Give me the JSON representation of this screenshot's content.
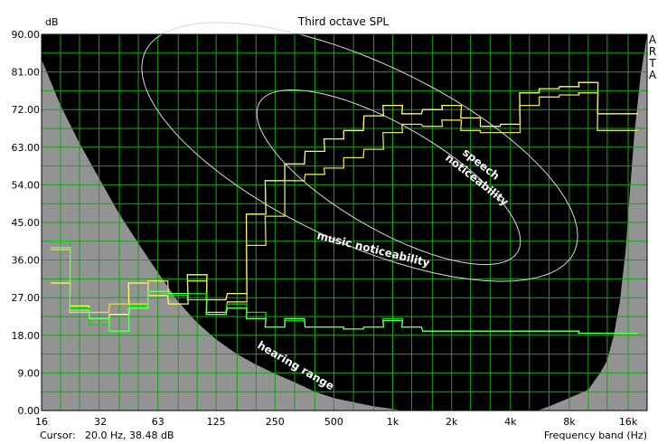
{
  "chart_data": {
    "type": "line",
    "title": "Third octave SPL",
    "ylabel": "dB",
    "xlabel": "Frequency band (Hz)",
    "brand": "ARTA",
    "cursor_label": "Cursor:",
    "cursor_value": "20.0 Hz, 38.48 dB",
    "x_scale": "log",
    "xlim": [
      16,
      20000
    ],
    "ylim": [
      0,
      90
    ],
    "grid": true,
    "y_ticks": [
      "0.00",
      "9.00",
      "18.00",
      "27.00",
      "36.00",
      "45.00",
      "54.00",
      "63.00",
      "72.00",
      "81.00",
      "90.00"
    ],
    "x_ticks": [
      {
        "label": "16",
        "value": 16
      },
      {
        "label": "32",
        "value": 32
      },
      {
        "label": "63",
        "value": 63
      },
      {
        "label": "125",
        "value": 125
      },
      {
        "label": "250",
        "value": 250
      },
      {
        "label": "500",
        "value": 500
      },
      {
        "label": "1k",
        "value": 1000
      },
      {
        "label": "2k",
        "value": 2000
      },
      {
        "label": "4k",
        "value": 4000
      },
      {
        "label": "8k",
        "value": 8000
      },
      {
        "label": "16k",
        "value": 16000
      }
    ],
    "bands": [
      20,
      25,
      31.5,
      40,
      50,
      63,
      80,
      100,
      125,
      160,
      200,
      250,
      315,
      400,
      500,
      630,
      800,
      1000,
      1250,
      1600,
      2000,
      2500,
      3150,
      4000,
      5000,
      6300,
      8000,
      10000,
      12500,
      16000
    ],
    "series": [
      {
        "color": "#ffff66",
        "values": [
          30.5,
          25,
          22,
          23,
          30.5,
          27.5,
          25.5,
          32.5,
          26.5,
          28,
          47,
          55,
          59,
          62,
          65,
          67,
          70.5,
          73,
          71,
          72,
          73,
          70,
          68,
          68.5,
          76,
          77,
          77.5,
          78.5,
          71,
          71
        ]
      },
      {
        "color": "#e6e04a",
        "values": [
          38.5,
          23.5,
          23.5,
          25.5,
          25.5,
          31,
          27.5,
          31,
          23.5,
          26,
          39.5,
          46.5,
          55,
          56.5,
          58,
          60.5,
          62.5,
          66.5,
          68.5,
          68,
          69.5,
          67,
          66.5,
          66.5,
          73,
          75,
          75.5,
          76,
          67,
          67
        ]
      },
      {
        "color": "#00e000",
        "values": [
          40.5,
          24.5,
          20.5,
          19,
          25,
          28.5,
          27.5,
          28,
          23,
          25.5,
          23.5,
          20,
          21.5,
          20,
          20,
          19.5,
          20,
          22,
          20,
          19,
          19,
          19,
          19,
          19,
          19,
          19,
          19,
          18.5,
          18.5,
          18.5
        ]
      },
      {
        "color": "#66ff66",
        "values": [
          39,
          24,
          22,
          19,
          24.5,
          28.5,
          28,
          26.5,
          23,
          24.5,
          22,
          20,
          22,
          20,
          20,
          19.5,
          20,
          21.5,
          20,
          19,
          19,
          19,
          19,
          19,
          19,
          19,
          19,
          18.5,
          18.5,
          18.5
        ]
      }
    ],
    "annotations": {
      "speech_line1": "speech",
      "speech_line2": "noticeability",
      "music": "music noticeability",
      "hearing": "hearing range"
    }
  }
}
